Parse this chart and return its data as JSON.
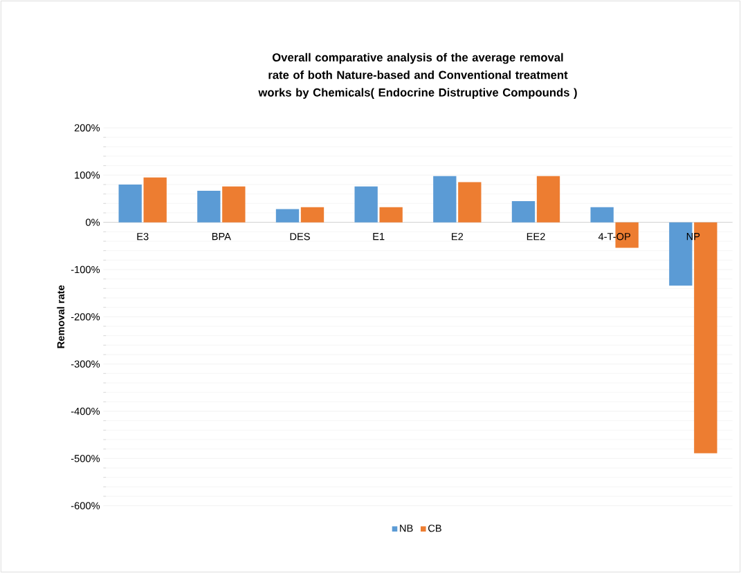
{
  "chart_data": {
    "type": "bar",
    "title": "Overall comparative analysis of the average removal rate of both Nature-based and Conventional treatment works by Chemicals( Endocrine Distruptive Compounds )",
    "ylabel": "Removal rate",
    "categories": [
      "E3",
      "BPA",
      "DES",
      "E1",
      "E2",
      "EE2",
      "4-T-OP",
      "NP"
    ],
    "series": [
      {
        "name": "NB",
        "color": "#5b9bd5",
        "values": [
          80,
          67,
          28,
          76,
          98,
          45,
          32,
          -134
        ]
      },
      {
        "name": "CB",
        "color": "#ed7d31",
        "values": [
          95,
          76,
          32,
          32,
          85,
          98,
          -54,
          -489
        ]
      }
    ],
    "ylim": [
      -600,
      200
    ],
    "yticks": [
      {
        "value": -600,
        "label": "-600%"
      },
      {
        "value": -500,
        "label": "-500%"
      },
      {
        "value": -400,
        "label": "-400%"
      },
      {
        "value": -300,
        "label": "-300%"
      },
      {
        "value": -200,
        "label": "-200%"
      },
      {
        "value": -100,
        "label": "-100%"
      },
      {
        "value": 0,
        "label": "0%"
      },
      {
        "value": 100,
        "label": "100%"
      },
      {
        "value": 200,
        "label": "200%"
      }
    ],
    "grid": "y",
    "legend": "bottom"
  }
}
